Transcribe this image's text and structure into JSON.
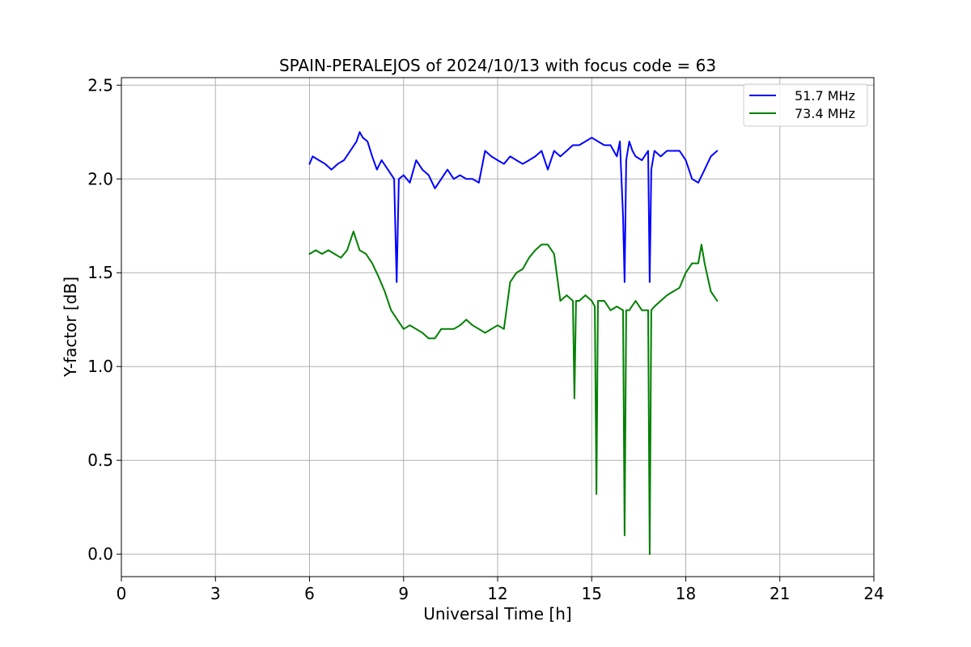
{
  "chart_data": {
    "type": "line",
    "title": "SPAIN-PERALEJOS of 2024/10/13 with focus code = 63",
    "xlabel": "Universal Time [h]",
    "ylabel": "Y-factor [dB]",
    "xlim": [
      0,
      24
    ],
    "ylim": [
      -0.12,
      2.54
    ],
    "xticks": [
      0,
      3,
      6,
      9,
      12,
      15,
      18,
      21,
      24
    ],
    "yticks": [
      0.0,
      0.5,
      1.0,
      1.5,
      2.0,
      2.5
    ],
    "xtick_labels": [
      "0",
      "3",
      "6",
      "9",
      "12",
      "15",
      "18",
      "21",
      "24"
    ],
    "ytick_labels": [
      "0.0",
      "0.5",
      "1.0",
      "1.5",
      "2.0",
      "2.5"
    ],
    "grid": true,
    "legend_position": "top-right",
    "series": [
      {
        "name": "51.7 MHz",
        "color": "#0000ff",
        "x": [
          6.0,
          6.1,
          6.3,
          6.5,
          6.7,
          6.9,
          7.1,
          7.3,
          7.5,
          7.6,
          7.7,
          7.85,
          8.0,
          8.15,
          8.3,
          8.5,
          8.7,
          8.78,
          8.85,
          9.0,
          9.2,
          9.4,
          9.6,
          9.8,
          10.0,
          10.2,
          10.4,
          10.6,
          10.8,
          11.0,
          11.2,
          11.4,
          11.6,
          11.8,
          12.0,
          12.2,
          12.4,
          12.6,
          12.8,
          13.0,
          13.2,
          13.4,
          13.6,
          13.8,
          14.0,
          14.2,
          14.4,
          14.6,
          14.8,
          15.0,
          15.2,
          15.4,
          15.6,
          15.8,
          15.9,
          16.0,
          16.05,
          16.1,
          16.2,
          16.3,
          16.4,
          16.6,
          16.8,
          16.85,
          16.9,
          17.0,
          17.2,
          17.4,
          17.6,
          17.8,
          18.0,
          18.2,
          18.4,
          18.6,
          18.8,
          19.0
        ],
        "y": [
          2.08,
          2.12,
          2.1,
          2.08,
          2.05,
          2.08,
          2.1,
          2.15,
          2.2,
          2.25,
          2.22,
          2.2,
          2.12,
          2.05,
          2.1,
          2.05,
          2.0,
          1.45,
          2.0,
          2.02,
          1.98,
          2.1,
          2.05,
          2.02,
          1.95,
          2.0,
          2.05,
          2.0,
          2.02,
          2.0,
          2.0,
          1.98,
          2.15,
          2.12,
          2.1,
          2.08,
          2.12,
          2.1,
          2.08,
          2.1,
          2.12,
          2.15,
          2.05,
          2.15,
          2.12,
          2.15,
          2.18,
          2.18,
          2.2,
          2.22,
          2.2,
          2.18,
          2.18,
          2.12,
          2.2,
          1.8,
          1.45,
          2.1,
          2.2,
          2.15,
          2.12,
          2.1,
          2.15,
          1.45,
          2.05,
          2.15,
          2.12,
          2.15,
          2.15,
          2.15,
          2.1,
          2.0,
          1.98,
          2.05,
          2.12,
          2.15
        ]
      },
      {
        "name": "73.4 MHz",
        "color": "#008000",
        "x": [
          6.0,
          6.2,
          6.4,
          6.6,
          6.8,
          7.0,
          7.2,
          7.4,
          7.6,
          7.8,
          8.0,
          8.2,
          8.4,
          8.6,
          8.8,
          9.0,
          9.2,
          9.4,
          9.6,
          9.8,
          10.0,
          10.2,
          10.4,
          10.6,
          10.8,
          11.0,
          11.2,
          11.4,
          11.6,
          11.8,
          12.0,
          12.2,
          12.4,
          12.6,
          12.8,
          13.0,
          13.2,
          13.4,
          13.6,
          13.8,
          14.0,
          14.2,
          14.4,
          14.45,
          14.5,
          14.6,
          14.8,
          15.0,
          15.1,
          15.15,
          15.2,
          15.4,
          15.6,
          15.8,
          16.0,
          16.05,
          16.1,
          16.2,
          16.4,
          16.6,
          16.8,
          16.85,
          16.9,
          17.0,
          17.2,
          17.4,
          17.6,
          17.8,
          18.0,
          18.2,
          18.4,
          18.5,
          18.6,
          18.8,
          19.0
        ],
        "y": [
          1.6,
          1.62,
          1.6,
          1.62,
          1.6,
          1.58,
          1.62,
          1.72,
          1.62,
          1.6,
          1.55,
          1.48,
          1.4,
          1.3,
          1.25,
          1.2,
          1.22,
          1.2,
          1.18,
          1.15,
          1.15,
          1.2,
          1.2,
          1.2,
          1.22,
          1.25,
          1.22,
          1.2,
          1.18,
          1.2,
          1.22,
          1.2,
          1.45,
          1.5,
          1.52,
          1.58,
          1.62,
          1.65,
          1.65,
          1.6,
          1.35,
          1.38,
          1.35,
          0.83,
          1.35,
          1.35,
          1.38,
          1.35,
          1.32,
          0.32,
          1.35,
          1.35,
          1.3,
          1.32,
          1.3,
          0.1,
          1.3,
          1.3,
          1.35,
          1.3,
          1.3,
          0.0,
          1.3,
          1.32,
          1.35,
          1.38,
          1.4,
          1.42,
          1.5,
          1.55,
          1.55,
          1.65,
          1.55,
          1.4,
          1.35
        ]
      }
    ]
  }
}
